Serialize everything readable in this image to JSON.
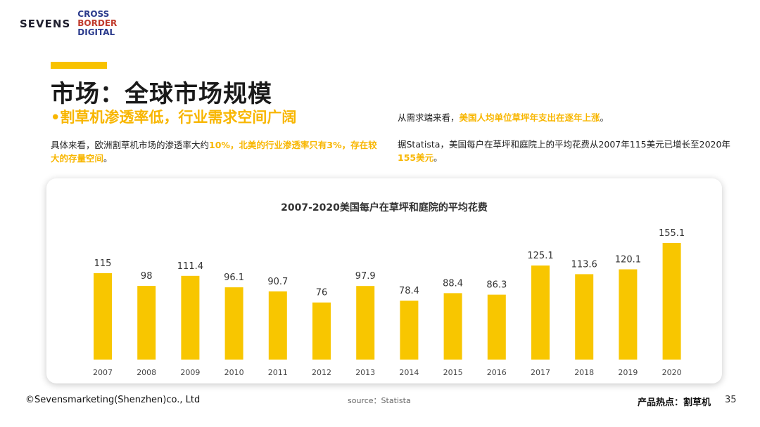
{
  "logo": {
    "brand": "SEVENS",
    "cbd_line1": "CROSS",
    "cbd_line2": "BORDER",
    "cbd_line3": "DIGITAL"
  },
  "title": "市场：全球市场规模",
  "subtitle": "•割草机渗透率低，行业需求空间广阔",
  "left_paragraph": {
    "prefix": "具体来看，欧洲割草机市场的渗透率大约",
    "highlight": "10%，北美的行业渗透率只有3%，存在较大的存量空间",
    "suffix": "。"
  },
  "right_paragraph1": {
    "prefix": "从需求端来看，",
    "highlight": "美国人均单位草坪年支出在逐年上涨",
    "suffix": "。"
  },
  "right_paragraph2": {
    "prefix": "据Statista，美国每户在草坪和庭院上的平均花费从2007年115美元已增长至2020年",
    "highlight": "155美元",
    "suffix": "。"
  },
  "chart_data": {
    "type": "bar",
    "title": "2007-2020美国每户在草坪和庭院的平均花费",
    "categories": [
      "2007",
      "2008",
      "2009",
      "2010",
      "2011",
      "2012",
      "2013",
      "2014",
      "2015",
      "2016",
      "2017",
      "2018",
      "2019",
      "2020"
    ],
    "values": [
      115,
      98,
      111.4,
      96.1,
      90.7,
      76,
      97.9,
      78.4,
      88.4,
      86.3,
      125.1,
      113.6,
      120.1,
      155.1
    ],
    "labels": [
      "115",
      "98",
      "111.4",
      "96.1",
      "90.7",
      "76",
      "97.9",
      "78.4",
      "88.4",
      "86.3",
      "125.1",
      "113.6",
      "120.1",
      "155.1"
    ],
    "ylim": [
      0,
      155.1
    ],
    "color": "#f8c600",
    "xlabel": "",
    "ylabel": ""
  },
  "footer": {
    "copyright": "©Sevensmarketing(Shenzhen)co., Ltd",
    "source": "source：Statista",
    "topic": "产品热点：割草机",
    "page": "35"
  }
}
